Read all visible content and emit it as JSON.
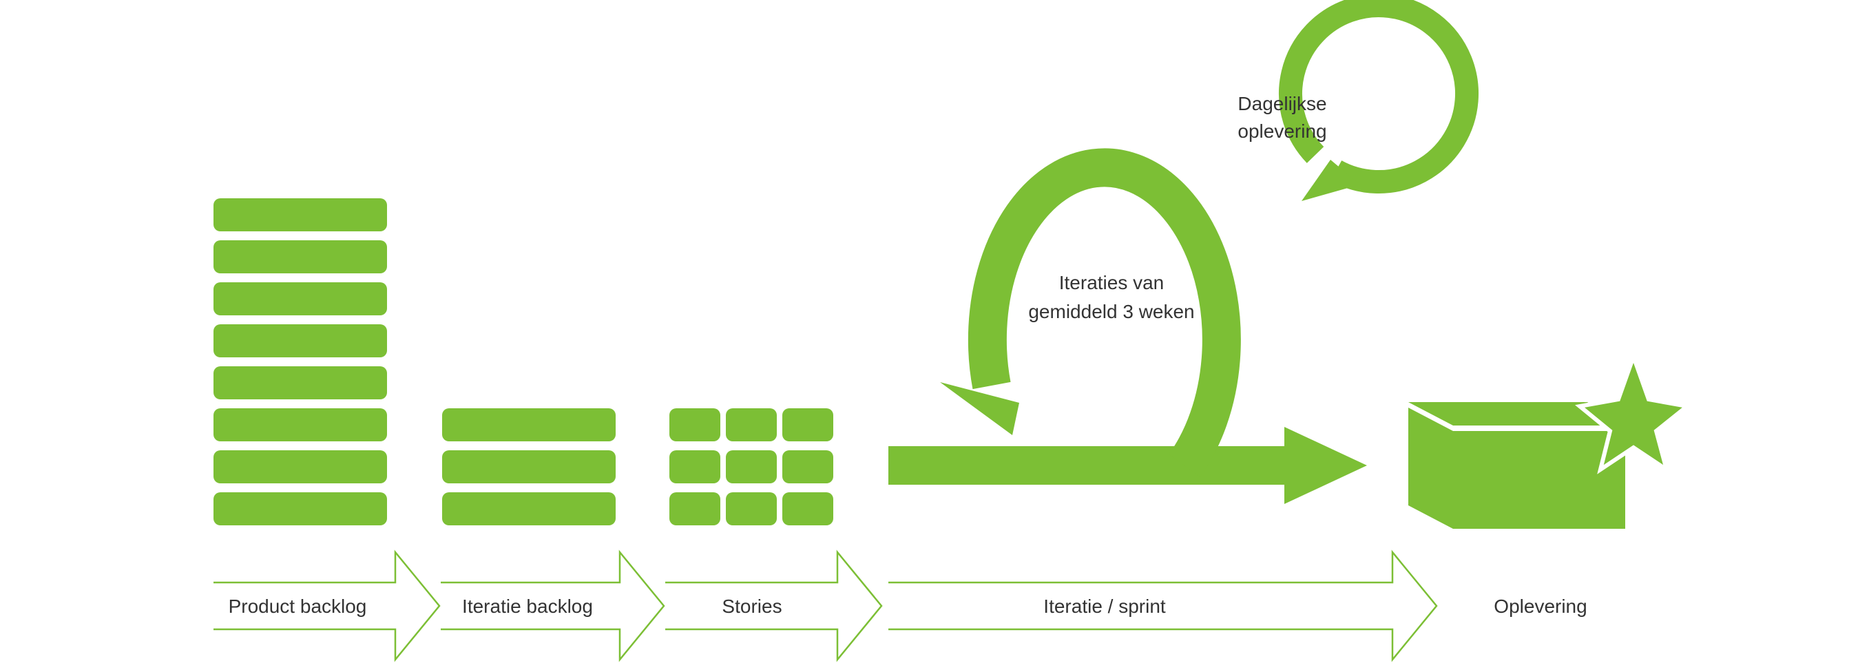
{
  "colors": {
    "accent": "#7cbf35",
    "text": "#333333",
    "background": "#ffffff"
  },
  "diagram": {
    "stages": [
      {
        "label": "Product backlog"
      },
      {
        "label": "Iteratie backlog"
      },
      {
        "label": "Stories"
      },
      {
        "label": "Iteratie / sprint"
      },
      {
        "label": "Oplevering"
      }
    ],
    "big_loop": {
      "line1": "Iteraties van",
      "line2": "gemiddeld 3 weken"
    },
    "small_loop": {
      "line1": "Dagelijkse",
      "line2": "oplevering"
    }
  }
}
